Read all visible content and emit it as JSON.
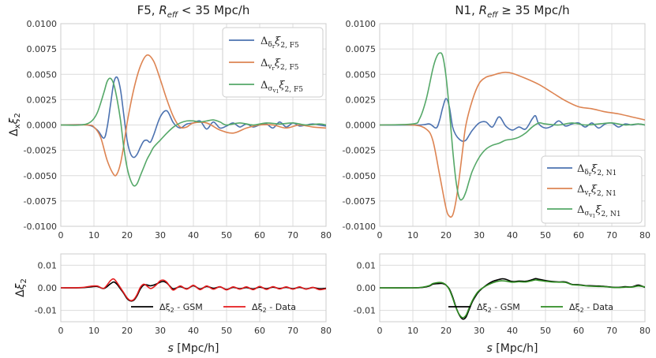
{
  "chart_data": [
    {
      "type": "line",
      "panel": "top-left",
      "title": "F5, R_eff < 35 Mpc/h",
      "title_text": "F5, Reff < 35 Mpc/h",
      "ylabel": "Δxξ2",
      "xlabel": "",
      "xlim": [
        0,
        80
      ],
      "ylim": [
        -0.01,
        0.01
      ],
      "xticks": [
        "0",
        "10",
        "20",
        "30",
        "40",
        "50",
        "60",
        "70",
        "80"
      ],
      "yticks": [
        "-0.0100",
        "-0.0075",
        "-0.0050",
        "-0.0025",
        "0.0000",
        "0.0025",
        "0.0050",
        "0.0075",
        "0.0100"
      ],
      "legend_position": "top-right",
      "series": [
        {
          "name": "Δδr ξ2,F5",
          "color": "#4c72b0",
          "x": [
            0,
            8,
            11,
            13,
            14,
            15,
            16,
            17,
            18,
            19,
            20,
            21,
            22,
            23,
            24,
            25,
            26,
            27,
            28,
            30,
            32,
            34,
            36,
            38,
            40,
            42,
            44,
            46,
            48,
            50,
            52,
            54,
            56,
            58,
            60,
            62,
            64,
            66,
            68,
            70,
            72,
            74,
            76,
            78,
            80
          ],
          "y": [
            0,
            0,
            -0.0005,
            -0.0013,
            -0.0002,
            0.002,
            0.0042,
            0.0047,
            0.0035,
            0.001,
            -0.0015,
            -0.0028,
            -0.0032,
            -0.0029,
            -0.0022,
            -0.0016,
            -0.0015,
            -0.0017,
            -0.001,
            0.0008,
            0.0014,
            0.0002,
            -0.0003,
            0.0001,
            0.0002,
            0.0004,
            -0.0004,
            0.0003,
            -0.0003,
            -0.0001,
            0.0002,
            -0.0002,
            0.0001,
            -0.0002,
            0,
            0.0001,
            -0.0003,
            0.0003,
            -0.0002,
            0.0002,
            -0.0001,
            0,
            0.0001,
            0,
            -0.0001
          ]
        },
        {
          "name": "Δvr ξ2,F5",
          "color": "#dd8452",
          "x": [
            0,
            8,
            10,
            12,
            14,
            16,
            17,
            18,
            19,
            20,
            22,
            24,
            26,
            28,
            30,
            32,
            34,
            36,
            38,
            40,
            44,
            48,
            52,
            56,
            60,
            64,
            68,
            72,
            76,
            80
          ],
          "y": [
            0,
            0,
            -0.0002,
            -0.0012,
            -0.0035,
            -0.0049,
            -0.0048,
            -0.0038,
            -0.002,
            0.0002,
            0.0035,
            0.0058,
            0.0069,
            0.0063,
            0.0045,
            0.0025,
            0.0008,
            -0.0002,
            -0.0002,
            0.0002,
            0.0002,
            -0.0005,
            -0.0008,
            -0.0003,
            0,
            0,
            -0.0003,
            0,
            -0.0002,
            -0.0003
          ]
        },
        {
          "name": "Δσv1 ξ2,F5",
          "color": "#55a868",
          "x": [
            0,
            6,
            9,
            11,
            13,
            14,
            15,
            16,
            17,
            18,
            19,
            20,
            21,
            22,
            23,
            24,
            25,
            26,
            27,
            28,
            30,
            32,
            34,
            36,
            38,
            40,
            42,
            44,
            46,
            48,
            50,
            54,
            58,
            62,
            66,
            70,
            74,
            78,
            80
          ],
          "y": [
            0,
            0,
            0.0003,
            0.0012,
            0.0032,
            0.0043,
            0.0046,
            0.004,
            0.0025,
            0.0005,
            -0.0022,
            -0.0042,
            -0.0054,
            -0.006,
            -0.0058,
            -0.005,
            -0.0042,
            -0.0034,
            -0.0028,
            -0.0022,
            -0.0015,
            -0.0008,
            -0.0002,
            0.0002,
            0.0004,
            0.0004,
            0.0003,
            0.0004,
            0.0005,
            0.0003,
            0,
            0.0002,
            0,
            0.0002,
            0.0001,
            0.0002,
            0,
            0.0001,
            0
          ]
        }
      ]
    },
    {
      "type": "line",
      "panel": "top-right",
      "title": "N1, R_eff ≥ 35 Mpc/h",
      "title_text": "N1, Reff ≥ 35 Mpc/h",
      "xlabel": "",
      "xlim": [
        0,
        80
      ],
      "ylim": [
        -0.01,
        0.01
      ],
      "xticks": [
        "0",
        "10",
        "20",
        "30",
        "40",
        "50",
        "60",
        "70",
        "80"
      ],
      "yticks": [
        "-0.0100",
        "-0.0075",
        "-0.0050",
        "-0.0025",
        "0.0000",
        "0.0025",
        "0.0050",
        "0.0075",
        "0.0100"
      ],
      "legend_position": "lower-right",
      "series": [
        {
          "name": "Δδr ξ2,N1",
          "color": "#4c72b0",
          "x": [
            0,
            12,
            15,
            17,
            18,
            19,
            20,
            21,
            22,
            23,
            24,
            25,
            26,
            27,
            28,
            30,
            32,
            34,
            36,
            38,
            40,
            42,
            44,
            46,
            47,
            48,
            50,
            52,
            54,
            56,
            58,
            60,
            62,
            64,
            66,
            68,
            70,
            72,
            74,
            76,
            78,
            80
          ],
          "y": [
            0,
            0,
            0.0001,
            -0.0003,
            0.0004,
            0.0017,
            0.0026,
            0.0018,
            -0.0002,
            -0.001,
            -0.0014,
            -0.0016,
            -0.0015,
            -0.001,
            -0.0005,
            0.0002,
            0.0003,
            -0.0002,
            0.0008,
            -0.0001,
            -0.0005,
            -0.0002,
            -0.0004,
            0.0006,
            0.0009,
            0.0001,
            -0.0003,
            -0.0001,
            0.0004,
            -0.0001,
            0.0001,
            0.0002,
            -0.0002,
            0.0002,
            -0.0003,
            0.0001,
            0.0002,
            -0.0002,
            0.0001,
            0,
            0.0001,
            0
          ]
        },
        {
          "name": "Δvr ξ2,N1",
          "color": "#dd8452",
          "x": [
            0,
            10,
            14,
            16,
            18,
            20,
            21,
            22,
            23,
            24,
            25,
            26,
            28,
            30,
            32,
            34,
            36,
            38,
            40,
            44,
            48,
            52,
            56,
            60,
            64,
            68,
            72,
            76,
            80
          ],
          "y": [
            0,
            0,
            -0.0004,
            -0.0015,
            -0.0048,
            -0.0082,
            -0.009,
            -0.0089,
            -0.0075,
            -0.0052,
            -0.0025,
            0,
            0.0025,
            0.0041,
            0.0047,
            0.0049,
            0.0051,
            0.0052,
            0.0051,
            0.0046,
            0.004,
            0.0032,
            0.0024,
            0.0018,
            0.0016,
            0.0013,
            0.0011,
            0.0008,
            0.0005
          ]
        },
        {
          "name": "Δσv1 ξ2,N1",
          "color": "#55a868",
          "x": [
            0,
            10,
            12,
            14,
            16,
            17,
            18,
            19,
            20,
            21,
            22,
            23,
            24,
            25,
            26,
            27,
            28,
            30,
            32,
            34,
            36,
            38,
            40,
            42,
            44,
            46,
            48,
            50,
            54,
            58,
            62,
            66,
            70,
            74,
            78,
            80
          ],
          "y": [
            0,
            0.0001,
            0.0006,
            0.0025,
            0.0055,
            0.0066,
            0.0071,
            0.0068,
            0.0048,
            0.0015,
            -0.0024,
            -0.0055,
            -0.0072,
            -0.0073,
            -0.0066,
            -0.0055,
            -0.0045,
            -0.0032,
            -0.0024,
            -0.002,
            -0.0018,
            -0.0015,
            -0.0014,
            -0.0012,
            -0.0008,
            -0.0002,
            0.0002,
            0.0001,
            0,
            0.0002,
            0,
            0.0001,
            0.0002,
            0,
            0.0001,
            0
          ]
        }
      ]
    },
    {
      "type": "line",
      "panel": "bottom-left",
      "xlabel": "s [Mpc/h]",
      "ylabel": "Δξ2",
      "xlim": [
        0,
        80
      ],
      "ylim": [
        -0.015,
        0.015
      ],
      "xticks": [
        "0",
        "10",
        "20",
        "30",
        "40",
        "50",
        "60",
        "70",
        "80"
      ],
      "yticks": [
        "-0.01",
        "0.00",
        "0.01"
      ],
      "legend_position": "lower-center",
      "series": [
        {
          "name": "Δξ2 - GSM",
          "color": "#000000",
          "x": [
            0,
            6,
            9,
            11,
            13,
            15,
            16,
            17,
            18,
            19,
            20,
            21,
            22,
            23,
            24,
            25,
            26,
            27,
            28,
            29,
            30,
            31,
            32,
            33,
            34,
            36,
            38,
            40,
            42,
            44,
            46,
            48,
            50,
            52,
            54,
            56,
            58,
            60,
            62,
            64,
            66,
            68,
            70,
            72,
            74,
            76,
            78,
            80
          ],
          "y": [
            0,
            0,
            0.0004,
            0.0006,
            -0.0003,
            0.0018,
            0.0026,
            0.0015,
            -0.0005,
            -0.0025,
            -0.0048,
            -0.0058,
            -0.0055,
            -0.0035,
            -0.0005,
            0.0012,
            0.0013,
            0.0009,
            0.0012,
            0.0018,
            0.0025,
            0.0028,
            0.0021,
            0.0006,
            -0.0005,
            0.0005,
            -0.0004,
            0.0009,
            -0.0005,
            0.0006,
            -0.0002,
            0.0004,
            -0.0007,
            0.0002,
            -0.0004,
            0.0001,
            -0.0005,
            0.0003,
            -0.0004,
            0.0003,
            -0.0003,
            0.0002,
            -0.0004,
            0.0002,
            -0.0005,
            0.0001,
            -0.0004,
            -0.0002
          ]
        },
        {
          "name": "Δξ2 - Data",
          "color": "#e41a1c",
          "x": [
            0,
            6,
            9,
            11,
            13,
            15,
            16,
            17,
            18,
            19,
            20,
            21,
            22,
            23,
            24,
            25,
            26,
            27,
            28,
            29,
            30,
            31,
            32,
            33,
            34,
            36,
            38,
            40,
            42,
            44,
            46,
            48,
            50,
            52,
            54,
            56,
            58,
            60,
            62,
            64,
            66,
            68,
            70,
            72,
            74,
            76,
            78,
            80
          ],
          "y": [
            0,
            0.0001,
            0.0007,
            0.0008,
            -0.0002,
            0.0032,
            0.0039,
            0.0022,
            0,
            -0.0022,
            -0.0044,
            -0.0056,
            -0.0052,
            -0.003,
            0.0002,
            0.0016,
            0.0008,
            -0.0003,
            0.0003,
            0.0016,
            0.0031,
            0.0034,
            0.0024,
            0.0004,
            -0.001,
            0.0008,
            -0.0006,
            0.0011,
            -0.0008,
            0.0008,
            -0.0006,
            0.0005,
            -0.0009,
            0.0004,
            -0.0006,
            0.0004,
            -0.0008,
            0.0006,
            -0.0007,
            0.0005,
            -0.0005,
            0.0004,
            -0.0006,
            0.0004,
            -0.0006,
            0.0002,
            -0.0008,
            -0.0004
          ]
        }
      ],
      "legend_labels": [
        "Δξ2 - GSM",
        "Δξ2 - Data"
      ]
    },
    {
      "type": "line",
      "panel": "bottom-right",
      "xlabel": "s [Mpc/h]",
      "xlim": [
        0,
        80
      ],
      "ylim": [
        -0.015,
        0.015
      ],
      "xticks": [
        "0",
        "10",
        "20",
        "30",
        "40",
        "50",
        "60",
        "70",
        "80"
      ],
      "yticks": [
        "-0.01",
        "0.00",
        "0.01"
      ],
      "legend_position": "lower-center",
      "series": [
        {
          "name": "Δξ2 - GSM",
          "color": "#000000",
          "x": [
            0,
            10,
            13,
            15,
            16,
            17,
            18,
            19,
            20,
            21,
            22,
            23,
            24,
            25,
            26,
            27,
            28,
            29,
            30,
            32,
            34,
            36,
            37,
            38,
            40,
            42,
            44,
            46,
            47,
            48,
            50,
            52,
            54,
            56,
            58,
            60,
            62,
            64,
            66,
            68,
            70,
            72,
            74,
            76,
            78,
            80
          ],
          "y": [
            0,
            0,
            0.0002,
            0.0008,
            0.0016,
            0.0018,
            0.0019,
            0.0019,
            0.0012,
            -0.0005,
            -0.004,
            -0.0085,
            -0.012,
            -0.0138,
            -0.013,
            -0.0095,
            -0.006,
            -0.0035,
            -0.0015,
            0.001,
            0.0028,
            0.0037,
            0.004,
            0.0038,
            0.0028,
            0.003,
            0.0029,
            0.0036,
            0.0041,
            0.0038,
            0.0032,
            0.0028,
            0.0026,
            0.0026,
            0.0015,
            0.0014,
            0.001,
            0.0009,
            0.0008,
            0.0006,
            0.0003,
            0.0002,
            0.0005,
            0.0004,
            0.0012,
            0.0002
          ]
        },
        {
          "name": "Δξ2 - Data",
          "color": "#2e8b22",
          "x": [
            0,
            10,
            13,
            15,
            16,
            17,
            18,
            19,
            20,
            21,
            22,
            23,
            24,
            25,
            26,
            27,
            28,
            29,
            30,
            32,
            34,
            36,
            37,
            38,
            40,
            42,
            44,
            46,
            47,
            48,
            50,
            52,
            54,
            56,
            58,
            60,
            62,
            64,
            66,
            68,
            70,
            72,
            74,
            76,
            78,
            80
          ],
          "y": [
            0,
            0,
            0.0003,
            0.001,
            0.0019,
            0.0022,
            0.0024,
            0.0022,
            0.0013,
            -0.0008,
            -0.0045,
            -0.0088,
            -0.0118,
            -0.0132,
            -0.0122,
            -0.0088,
            -0.0055,
            -0.003,
            -0.0012,
            0.0008,
            0.0022,
            0.003,
            0.0031,
            0.003,
            0.0025,
            0.0027,
            0.0026,
            0.0032,
            0.0035,
            0.0033,
            0.0029,
            0.0026,
            0.0025,
            0.0024,
            0.0014,
            0.0012,
            0.0009,
            0.0007,
            0.0006,
            0.0005,
            0.0002,
            0.0001,
            0.0003,
            0.0003,
            0.0008,
            0.0004
          ]
        }
      ],
      "legend_labels": [
        "Δξ2 - GSM",
        "Δξ2 - Data"
      ]
    }
  ],
  "labels": {
    "top_left_title": "F5, Reff < 35 Mpc/h",
    "top_right_title": "N1, Reff ≥ 35 Mpc/h",
    "top_ylabel": "Δxξ2",
    "bottom_ylabel": "Δξ2",
    "bottom_xlabel": "s [Mpc/h]"
  },
  "colors": {
    "grid": "#dcdcdc",
    "frame": "#cccccc"
  }
}
